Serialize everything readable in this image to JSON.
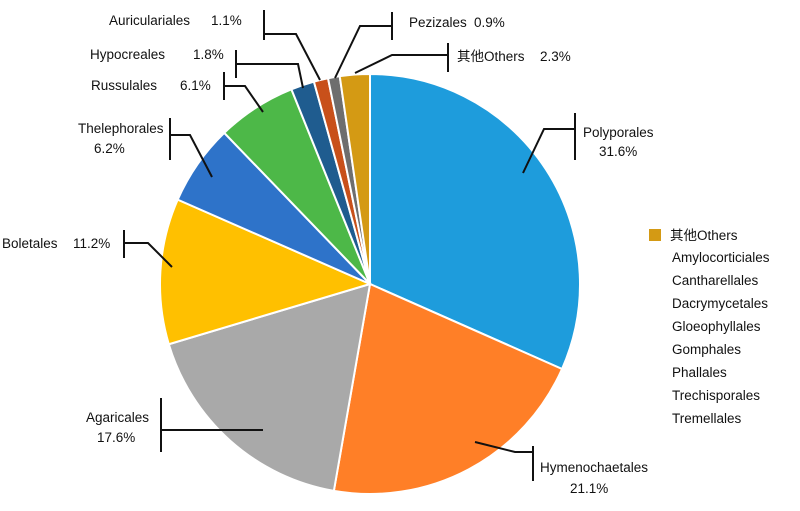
{
  "chart_data": {
    "type": "pie",
    "title": "",
    "slices": [
      {
        "label": "Polyporales",
        "value": 31.6,
        "display": "31.6%",
        "color": "#1E9CDC"
      },
      {
        "label": "Hymenochaetales",
        "value": 21.1,
        "display": "21.1%",
        "color": "#FF7F27"
      },
      {
        "label": "Agaricales",
        "value": 17.6,
        "display": "17.6%",
        "color": "#A9A9A9"
      },
      {
        "label": "Boletales",
        "value": 11.2,
        "display": "11.2%",
        "color": "#FFC000"
      },
      {
        "label": "Thelephorales",
        "value": 6.2,
        "display": "6.2%",
        "color": "#2E73C9"
      },
      {
        "label": "Russulales",
        "value": 6.1,
        "display": "6.1%",
        "color": "#4DB848"
      },
      {
        "label": "Hypocreales",
        "value": 1.8,
        "display": "1.8%",
        "color": "#1F5C8F"
      },
      {
        "label": "Auriculariales",
        "value": 1.1,
        "display": "1.1%",
        "color": "#C8501A"
      },
      {
        "label": "Pezizales",
        "value": 0.9,
        "display": "0.9%",
        "color": "#6E6E6E"
      },
      {
        "label": "其他Others",
        "value": 2.3,
        "display": "2.3%",
        "color": "#D49A14"
      }
    ],
    "legend": {
      "position": "right",
      "title": "其他Others",
      "color": "#D49A14",
      "items": [
        "Amylocorticiales",
        "Cantharellales",
        "Dacrymycetales",
        "Gloeophyllales",
        "Gomphales",
        "Phallales",
        "Trechisporales",
        "Tremellales"
      ]
    }
  }
}
